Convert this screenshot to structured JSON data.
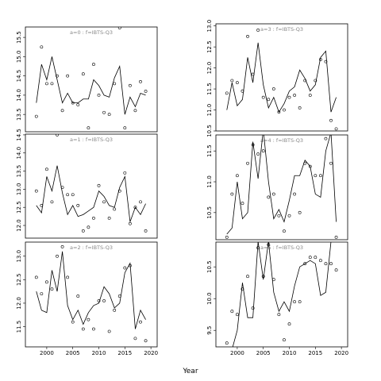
{
  "xlabel": "Year",
  "chart_data": [
    {
      "type": "scatter",
      "title": "a=0  :  f=IBTS-Q3",
      "x": [
        1998,
        1999,
        2000,
        2001,
        2002,
        2003,
        2004,
        2005,
        2006,
        2007,
        2008,
        2009,
        2010,
        2011,
        2012,
        2013,
        2014,
        2015,
        2016,
        2017,
        2018,
        2019
      ],
      "xlim": [
        1995.9,
        2021.2
      ],
      "ylim": [
        13.05,
        15.77
      ],
      "yticks": [
        13.5,
        {
          "value": 14,
          "label": "14.0"
        },
        14.5,
        {
          "value": 15,
          "label": "15.0"
        },
        15.5
      ],
      "series": [
        {
          "type": "scatter",
          "color": "#000000",
          "values": [
            13.45,
            15.25,
            14.3,
            14.3,
            14.5,
            13.6,
            14.5,
            13.8,
            13.75,
            14.55,
            13.15,
            14.8,
            14.0,
            13.55,
            13.5,
            14.3,
            15.75,
            13.15,
            14.25,
            13.6,
            14.35,
            14.1
          ]
        },
        {
          "type": "line",
          "color": "#000000",
          "values": [
            13.8,
            14.8,
            14.4,
            15.0,
            14.4,
            13.8,
            14.05,
            13.8,
            13.8,
            13.9,
            13.9,
            14.4,
            14.25,
            14.0,
            13.95,
            14.45,
            14.75,
            13.5,
            13.95,
            13.7,
            14.05,
            14.0
          ]
        }
      ]
    },
    {
      "type": "scatter",
      "title": "a=3  :  f=IBTS-Q3",
      "x": [
        1998,
        1999,
        2000,
        2001,
        2002,
        2003,
        2004,
        2005,
        2006,
        2007,
        2008,
        2009,
        2010,
        2011,
        2012,
        2013,
        2014,
        2015,
        2016,
        2017,
        2018,
        2019
      ],
      "xlim": [
        1995.9,
        2021.2
      ],
      "ylim": [
        10.5,
        13.05
      ],
      "yticks": [
        10.5,
        {
          "value": 11,
          "label": "11.0"
        },
        11.5,
        {
          "value": 12,
          "label": "12.0"
        },
        12.5,
        {
          "value": 13,
          "label": "13.0"
        }
      ],
      "series": [
        {
          "type": "scatter",
          "color": "#000000",
          "values": [
            11.4,
            11.7,
            11.65,
            11.45,
            12.75,
            11.85,
            12.9,
            11.3,
            11.25,
            11.5,
            10.95,
            11.0,
            11.3,
            11.35,
            11.05,
            11.7,
            11.35,
            11.7,
            12.2,
            12.15,
            10.75,
            10.55
          ]
        },
        {
          "type": "line",
          "color": "#000000",
          "values": [
            11.0,
            11.65,
            11.1,
            11.25,
            12.25,
            11.65,
            12.6,
            11.6,
            11.05,
            11.3,
            10.95,
            11.15,
            11.45,
            11.55,
            11.95,
            11.75,
            11.45,
            11.6,
            12.25,
            12.4,
            10.95,
            11.3
          ]
        }
      ]
    },
    {
      "type": "scatter",
      "title": "a=1  :  f=IBTS-Q3",
      "x": [
        1998,
        1999,
        2000,
        2001,
        2002,
        2003,
        2004,
        2005,
        2006,
        2007,
        2008,
        2009,
        2010,
        2011,
        2012,
        2013,
        2014,
        2015,
        2016,
        2017,
        2018,
        2019
      ],
      "xlim": [
        1995.9,
        2021.2
      ],
      "ylim": [
        11.65,
        14.52
      ],
      "yticks": [
        {
          "value": 12,
          "label": "12.0"
        },
        12.5,
        {
          "value": 13,
          "label": "13.0"
        },
        13.5,
        {
          "value": 14,
          "label": "14.0"
        },
        14.5
      ],
      "series": [
        {
          "type": "scatter",
          "color": "#000000",
          "values": [
            12.95,
            12.55,
            13.55,
            12.65,
            14.5,
            13.05,
            12.85,
            12.85,
            12.55,
            11.85,
            11.95,
            12.2,
            13.1,
            12.65,
            12.2,
            12.45,
            12.95,
            13.45,
            12.05,
            12.5,
            12.65,
            11.85
          ]
        },
        {
          "type": "line",
          "color": "#000000",
          "values": [
            12.55,
            12.35,
            13.35,
            12.95,
            13.65,
            12.9,
            12.3,
            12.55,
            12.25,
            12.3,
            12.4,
            12.5,
            12.95,
            12.8,
            12.55,
            12.5,
            13.05,
            13.35,
            12.1,
            12.5,
            12.3,
            12.6
          ]
        }
      ]
    },
    {
      "type": "scatter",
      "title": "a=4  :  f=IBTS-Q3",
      "x": [
        1998,
        1999,
        2000,
        2001,
        2002,
        2003,
        2004,
        2005,
        2006,
        2007,
        2008,
        2009,
        2010,
        2011,
        2012,
        2013,
        2014,
        2015,
        2016,
        2017,
        2018,
        2019
      ],
      "xlim": [
        1995.9,
        2021.2
      ],
      "ylim": [
        10.06,
        11.76
      ],
      "yticks": [
        10.5,
        {
          "value": 11,
          "label": "11.0"
        },
        11.5
      ],
      "series": [
        {
          "type": "scatter",
          "color": "#000000",
          "values": [
            10.1,
            10.8,
            11.1,
            10.65,
            11.3,
            11.6,
            11.45,
            11.5,
            10.75,
            10.8,
            10.45,
            10.2,
            10.45,
            10.8,
            10.5,
            11.3,
            11.25,
            11.1,
            11.1,
            11.7,
            11.3,
            10.1
          ]
        },
        {
          "type": "line",
          "color": "#000000",
          "values": [
            10.15,
            10.25,
            11.0,
            10.4,
            10.5,
            11.65,
            11.05,
            11.85,
            11.0,
            10.4,
            10.55,
            10.35,
            10.7,
            11.1,
            11.1,
            11.35,
            11.25,
            10.8,
            10.75,
            11.5,
            11.8,
            10.35
          ]
        }
      ]
    },
    {
      "type": "scatter",
      "title": "a=2  :  f=IBTS-Q3",
      "x": [
        1998,
        1999,
        2000,
        2001,
        2002,
        2003,
        2004,
        2005,
        2006,
        2007,
        2008,
        2009,
        2010,
        2011,
        2012,
        2013,
        2014,
        2015,
        2016,
        2017,
        2018,
        2019
      ],
      "xlim": [
        1995.9,
        2021.2
      ],
      "ylim": [
        11.07,
        13.3
      ],
      "xticks": [
        2000,
        2005,
        2010,
        2015,
        2020
      ],
      "yticks": [
        11.5,
        {
          "value": 12,
          "label": "12.0"
        },
        12.5,
        {
          "value": 13,
          "label": "13.0"
        }
      ],
      "series": [
        {
          "type": "scatter",
          "color": "#000000",
          "values": [
            12.55,
            12.2,
            12.45,
            12.3,
            13.0,
            13.2,
            12.55,
            11.6,
            12.15,
            11.45,
            11.65,
            11.45,
            12.05,
            12.05,
            11.4,
            11.85,
            12.15,
            12.75,
            12.8,
            11.25,
            11.6,
            11.2
          ]
        },
        {
          "type": "line",
          "color": "#000000",
          "values": [
            12.25,
            11.85,
            11.8,
            12.7,
            12.25,
            13.1,
            11.95,
            11.65,
            11.85,
            11.55,
            11.8,
            11.95,
            12.0,
            12.35,
            12.2,
            11.9,
            12.0,
            12.65,
            12.85,
            11.45,
            11.85,
            11.65
          ]
        }
      ]
    },
    {
      "type": "scatter",
      "title": "a=5  :  f=IBTS-Q3",
      "x": [
        1998,
        1999,
        2000,
        2001,
        2002,
        2003,
        2004,
        2005,
        2006,
        2007,
        2008,
        2009,
        2010,
        2011,
        2012,
        2013,
        2014,
        2015,
        2016,
        2017,
        2018,
        2019
      ],
      "xlim": [
        1995.9,
        2021.2
      ],
      "ylim": [
        9.24,
        10.89
      ],
      "xticks": [
        2000,
        2005,
        2010,
        2015,
        2020
      ],
      "yticks": [
        9.5,
        {
          "value": 10,
          "label": "10.0"
        },
        10.5
      ],
      "series": [
        {
          "type": "scatter",
          "color": "#000000",
          "values": [
            9.3,
            9.8,
            9.75,
            10.15,
            10.35,
            9.85,
            10.8,
            10.35,
            10.85,
            10.3,
            9.75,
            9.35,
            9.6,
            9.95,
            9.95,
            10.55,
            10.65,
            10.65,
            10.6,
            10.55,
            10.55,
            10.45
          ]
        },
        {
          "type": "line",
          "color": "#000000",
          "values": [
            9.2,
            9.2,
            9.5,
            10.25,
            9.7,
            9.7,
            10.9,
            10.3,
            10.9,
            10.1,
            9.8,
            9.95,
            9.8,
            10.2,
            10.5,
            10.55,
            10.6,
            10.55,
            10.05,
            10.1,
            10.9,
            10.9
          ]
        }
      ]
    }
  ]
}
